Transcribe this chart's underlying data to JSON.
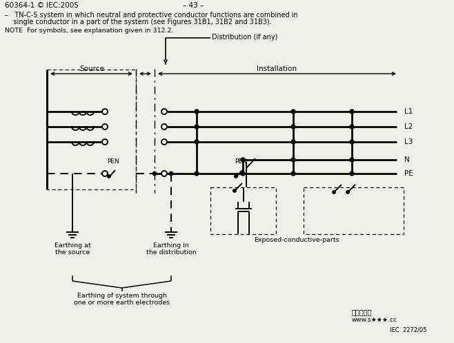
{
  "bg_color": "#f0f0eb",
  "header_left": "60364-1 © IEC:2005",
  "header_center": "– 43 –",
  "desc_line1": "–   TN-C-S system in which neutral and protective conductor functions are combined in",
  "desc_line2": "    single conductor in a part of the system (see Figures 31B1, 31B2 and 31B3).",
  "note_line": "NOTE  For symbols, see explanation given in 312.2.",
  "label_source": "Source",
  "label_installation": "Installation",
  "label_distribution": "Distribution (if any)",
  "label_L1": "L1",
  "label_L2": "L2",
  "label_L3": "L3",
  "label_N": "N",
  "label_PE": "PE",
  "label_PEN1": "PEN",
  "label_PEN2": "PEN",
  "label_earthing_source_1": "Earthing at",
  "label_earthing_source_2": "the source",
  "label_earthing_dist_1": "Earthing in",
  "label_earthing_dist_2": "the distribution",
  "label_earthing_system_1": "Earthing of system through",
  "label_earthing_system_2": "one or more earth electrodes",
  "label_exposed": "Exposed-conductive-parts",
  "watermark1": "电力学习网",
  "watermark2": "www.s★★★.cc",
  "watermark3": "IEC  2272/05"
}
